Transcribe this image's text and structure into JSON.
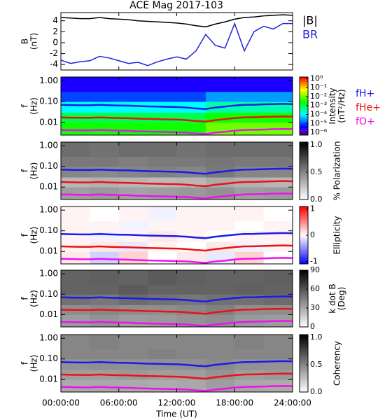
{
  "chart_data": [
    {
      "type": "line",
      "title": "ACE Mag 2017-103",
      "ylabel": [
        "B",
        "(nT)"
      ],
      "x": [
        0,
        1,
        2,
        3,
        4,
        5,
        6,
        7,
        8,
        9,
        10,
        11,
        12,
        13,
        14,
        15,
        16,
        17,
        18,
        19,
        20,
        21,
        22,
        23,
        24
      ],
      "xlim": [
        0,
        24
      ],
      "ylim": [
        -5,
        5.5
      ],
      "yticks": [
        -4,
        -2,
        0,
        2,
        4
      ],
      "series": [
        {
          "name": "|B|",
          "color": "#000000",
          "values": [
            4.6,
            4.5,
            4.4,
            4.4,
            4.6,
            4.4,
            4.3,
            4.2,
            4.0,
            3.9,
            3.8,
            3.7,
            3.6,
            3.4,
            3.1,
            2.9,
            3.4,
            3.8,
            4.3,
            4.6,
            4.7,
            4.9,
            5.0,
            5.1,
            5.0
          ]
        },
        {
          "name": "BR",
          "color": "#2222dd",
          "values": [
            -3.2,
            -3.8,
            -3.5,
            -3.3,
            -2.5,
            -2.8,
            -3.3,
            -3.8,
            -3.6,
            -4.2,
            -3.5,
            -3.0,
            -2.6,
            -3.0,
            -1.5,
            1.5,
            -0.5,
            -1.0,
            3.5,
            -1.5,
            2.0,
            3.0,
            2.5,
            3.5,
            3.5
          ]
        }
      ]
    },
    {
      "type": "heatmap",
      "ylabel": [
        "f",
        "(Hz)"
      ],
      "zlabel": [
        "Intensity",
        "(nT²/Hz)"
      ],
      "xlim": [
        0,
        24
      ],
      "ylim": [
        0.0025,
        1.5
      ],
      "ylog": true,
      "yticks": [
        {
          "value": 0.01,
          "label": "0.01"
        },
        {
          "value": 0.1,
          "label": "0.10"
        },
        {
          "value": 1,
          "label": "1.00"
        }
      ],
      "colormap": "rainbow",
      "zlog": true,
      "zlim": [
        5e-07,
        1.5
      ],
      "zticks": [
        {
          "value": 1,
          "label": "10⁰"
        },
        {
          "value": 0.1,
          "label": "10⁻¹"
        },
        {
          "value": 0.01,
          "label": "10⁻²"
        },
        {
          "value": 0.001,
          "label": "10⁻³"
        },
        {
          "value": 0.0001,
          "label": "10⁻⁴"
        },
        {
          "value": 1e-05,
          "label": "10⁻⁵"
        },
        {
          "value": 1e-06,
          "label": "10⁻⁶"
        }
      ],
      "xbins": [
        0,
        3,
        6,
        9,
        12,
        15,
        18,
        21,
        24
      ],
      "ybins": [
        0.0025,
        0.01,
        0.03,
        0.1,
        0.3,
        1.5
      ],
      "z": [
        [
          0.003,
          0.003,
          0.003,
          0.003,
          0.003,
          0.01,
          0.01,
          0.01
        ],
        [
          0.001,
          0.001,
          0.001,
          0.001,
          0.001,
          0.003,
          0.003,
          0.003
        ],
        [
          0.0001,
          0.0001,
          0.0001,
          0.0001,
          0.0001,
          0.0003,
          0.0003,
          0.0003
        ],
        [
          1e-05,
          1e-05,
          1e-05,
          1e-05,
          1e-05,
          3e-05,
          3e-05,
          3e-05
        ],
        [
          3e-06,
          3e-06,
          3e-06,
          3e-06,
          3e-06,
          3e-06,
          3e-06,
          3e-06
        ]
      ],
      "x": [
        0,
        1,
        2,
        3,
        4,
        5,
        6,
        7,
        8,
        9,
        10,
        11,
        12,
        13,
        14,
        15,
        16,
        17,
        18,
        19,
        20,
        21,
        22,
        23,
        24
      ],
      "series": [
        {
          "name": "fH+",
          "color": "#1a1aee",
          "values": [
            0.07,
            0.068,
            0.067,
            0.067,
            0.07,
            0.067,
            0.065,
            0.064,
            0.061,
            0.059,
            0.058,
            0.056,
            0.055,
            0.052,
            0.047,
            0.044,
            0.052,
            0.058,
            0.065,
            0.07,
            0.071,
            0.074,
            0.076,
            0.078,
            0.076
          ]
        },
        {
          "name": "fHe+",
          "color": "#ee1111",
          "values": [
            0.0175,
            0.017,
            0.0168,
            0.0168,
            0.0175,
            0.0168,
            0.0163,
            0.016,
            0.0153,
            0.0148,
            0.0145,
            0.014,
            0.0138,
            0.013,
            0.0118,
            0.011,
            0.013,
            0.0145,
            0.0163,
            0.0175,
            0.0178,
            0.0185,
            0.019,
            0.0195,
            0.019
          ]
        },
        {
          "name": "fO+",
          "color": "#ee11ee",
          "values": [
            0.0044,
            0.0043,
            0.0042,
            0.0042,
            0.0044,
            0.0042,
            0.0041,
            0.004,
            0.0038,
            0.0037,
            0.0036,
            0.0035,
            0.0034,
            0.0033,
            0.003,
            0.0028,
            0.0033,
            0.0036,
            0.0041,
            0.0044,
            0.0045,
            0.0046,
            0.0048,
            0.0049,
            0.0048
          ]
        }
      ]
    },
    {
      "type": "heatmap",
      "ylabel": [
        "f",
        "(Hz)"
      ],
      "zlabel": [
        "% Polarization"
      ],
      "xlim": [
        0,
        24
      ],
      "ylim": [
        0.0025,
        1.5
      ],
      "ylog": true,
      "yticks": [
        {
          "value": 0.01,
          "label": "0.01"
        },
        {
          "value": 0.1,
          "label": "0.10"
        },
        {
          "value": 1,
          "label": "1.00"
        }
      ],
      "colormap": "gray",
      "zlim": [
        0,
        1.05
      ],
      "zticks": [
        {
          "value": 0,
          "label": "0.0"
        },
        0.5,
        {
          "value": 1,
          "label": "1.0"
        }
      ],
      "xbins": [
        0,
        3,
        6,
        9,
        12,
        15,
        18,
        21,
        24
      ],
      "ybins": [
        0.0025,
        0.01,
        0.03,
        0.1,
        0.3,
        1.5
      ],
      "z": [
        [
          0.4,
          0.42,
          0.38,
          0.4,
          0.42,
          0.45,
          0.4,
          0.42
        ],
        [
          0.3,
          0.32,
          0.3,
          0.28,
          0.3,
          0.35,
          0.32,
          0.3
        ],
        [
          0.5,
          0.48,
          0.5,
          0.52,
          0.5,
          0.55,
          0.5,
          0.5
        ],
        [
          0.55,
          0.55,
          0.53,
          0.55,
          0.55,
          0.57,
          0.55,
          0.55
        ],
        [
          0.6,
          0.58,
          0.6,
          0.6,
          0.58,
          0.6,
          0.6,
          0.6
        ]
      ]
    },
    {
      "type": "heatmap",
      "ylabel": [
        "f",
        "(Hz)"
      ],
      "zlabel": [
        "Ellipticity"
      ],
      "xlim": [
        0,
        24
      ],
      "ylim": [
        0.0025,
        1.5
      ],
      "ylog": true,
      "yticks": [
        {
          "value": 0.01,
          "label": "0.01"
        },
        {
          "value": 0.1,
          "label": "0.10"
        },
        {
          "value": 1,
          "label": "1.00"
        }
      ],
      "colormap": "bwr",
      "zlim": [
        -1.1,
        1.1
      ],
      "zticks": [
        -1,
        0,
        1
      ],
      "xbins": [
        0,
        3,
        6,
        9,
        12,
        15,
        18,
        21,
        24
      ],
      "ybins": [
        0.0025,
        0.01,
        0.03,
        0.1,
        0.3,
        1.5
      ],
      "z": [
        [
          0.1,
          -0.2,
          0.2,
          0,
          0.1,
          -0.1,
          0.2,
          0
        ],
        [
          0.05,
          0.1,
          -0.1,
          0.05,
          0,
          0.1,
          -0.05,
          0.05
        ],
        [
          0.05,
          -0.05,
          0.05,
          0.1,
          0.05,
          0,
          0.05,
          0.05
        ],
        [
          0.05,
          0.05,
          -0.05,
          0.05,
          0.05,
          0.05,
          0,
          0.05
        ],
        [
          0.05,
          0,
          0.05,
          -0.05,
          0.05,
          0.05,
          0.05,
          0
        ]
      ]
    },
    {
      "type": "heatmap",
      "ylabel": [
        "f",
        "(Hz)"
      ],
      "zlabel": [
        "k dot B",
        "(Deg)"
      ],
      "xlim": [
        0,
        24
      ],
      "ylim": [
        0.0025,
        1.5
      ],
      "ylog": true,
      "yticks": [
        {
          "value": 0.01,
          "label": "0.01"
        },
        {
          "value": 0.1,
          "label": "0.10"
        },
        {
          "value": 1,
          "label": "1.00"
        }
      ],
      "colormap": "gray",
      "zlim": [
        0,
        90
      ],
      "zticks": [
        0,
        30,
        60,
        90
      ],
      "xbins": [
        0,
        3,
        6,
        9,
        12,
        15,
        18,
        21,
        24
      ],
      "ybins": [
        0.0025,
        0.01,
        0.03,
        0.1,
        0.3,
        1.5
      ],
      "z": [
        [
          35,
          38,
          35,
          36,
          38,
          40,
          36,
          35
        ],
        [
          40,
          42,
          40,
          40,
          42,
          45,
          40,
          40
        ],
        [
          50,
          48,
          52,
          50,
          48,
          50,
          50,
          52
        ],
        [
          55,
          55,
          58,
          55,
          55,
          55,
          56,
          55
        ],
        [
          55,
          56,
          55,
          58,
          56,
          55,
          55,
          56
        ]
      ]
    },
    {
      "type": "heatmap",
      "ylabel": [
        "f",
        "(Hz)"
      ],
      "zlabel": [
        "Coherency"
      ],
      "xlim": [
        0,
        24
      ],
      "ylim": [
        0.0025,
        1.5
      ],
      "ylog": true,
      "yticks": [
        {
          "value": 0.01,
          "label": "0.01"
        },
        {
          "value": 0.1,
          "label": "0.10"
        },
        {
          "value": 1,
          "label": "1.00"
        }
      ],
      "colormap": "gray",
      "zlim": [
        0,
        1.05
      ],
      "zticks": [
        {
          "value": 0,
          "label": "0.0"
        },
        0.5,
        {
          "value": 1,
          "label": "1.0"
        }
      ],
      "xbins": [
        0,
        3,
        6,
        9,
        12,
        15,
        18,
        21,
        24
      ],
      "ybins": [
        0.0025,
        0.01,
        0.03,
        0.1,
        0.3,
        1.5
      ],
      "z": [
        [
          0.35,
          0.36,
          0.35,
          0.34,
          0.36,
          0.4,
          0.36,
          0.35
        ],
        [
          0.4,
          0.4,
          0.42,
          0.4,
          0.4,
          0.44,
          0.4,
          0.42
        ],
        [
          0.45,
          0.46,
          0.45,
          0.45,
          0.46,
          0.48,
          0.45,
          0.45
        ],
        [
          0.5,
          0.5,
          0.5,
          0.52,
          0.5,
          0.5,
          0.5,
          0.5
        ],
        [
          0.5,
          0.52,
          0.5,
          0.5,
          0.5,
          0.5,
          0.52,
          0.5
        ]
      ],
      "xticks": [
        {
          "value": 0,
          "label": "00:00:00"
        },
        {
          "value": 6,
          "label": "06:00:00"
        },
        {
          "value": 12,
          "label": "12:00:00"
        },
        {
          "value": 18,
          "label": "18:00:00"
        },
        {
          "value": 24,
          "label": "24:00:00"
        }
      ],
      "xlabel": "Time (UT)"
    }
  ]
}
